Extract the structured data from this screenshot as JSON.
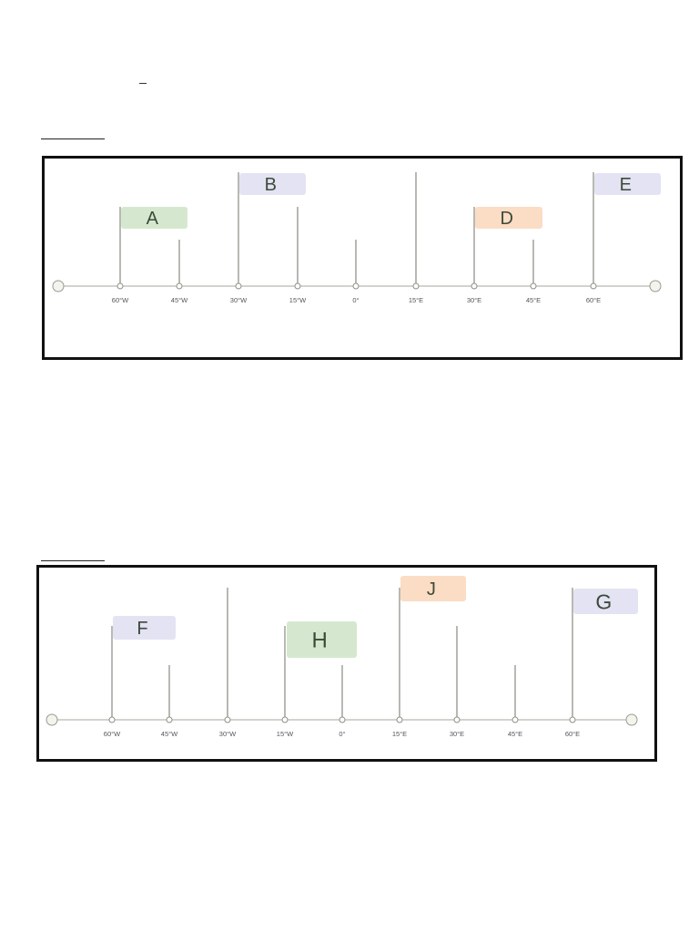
{
  "colors": {
    "green": "#d5e8cf",
    "purple": "#e3e3f3",
    "orange": "#fbdcc4",
    "line": "#8a8a80",
    "axis": "#b9b9b0"
  },
  "panels": [
    {
      "ticks": [
        "60°W",
        "45°W",
        "30°W",
        "15°W",
        "0°",
        "15°E",
        "30°E",
        "45°E",
        "60°E"
      ],
      "flags": [
        {
          "label": "A",
          "tick": 0,
          "color": "green"
        },
        {
          "label": "B",
          "tick": 2,
          "color": "purple"
        },
        {
          "label": "D",
          "tick": 6,
          "color": "orange"
        },
        {
          "label": "E",
          "tick": 8,
          "color": "purple"
        }
      ]
    },
    {
      "ticks": [
        "60°W",
        "45°W",
        "30°W",
        "15°W",
        "0°",
        "15°E",
        "30°E",
        "45°E",
        "60°E"
      ],
      "flags": [
        {
          "label": "F",
          "tick": 0,
          "color": "purple"
        },
        {
          "label": "H",
          "tick": 3,
          "color": "green"
        },
        {
          "label": "J",
          "tick": 5,
          "color": "orange"
        },
        {
          "label": "G",
          "tick": 8,
          "color": "purple"
        }
      ]
    }
  ]
}
